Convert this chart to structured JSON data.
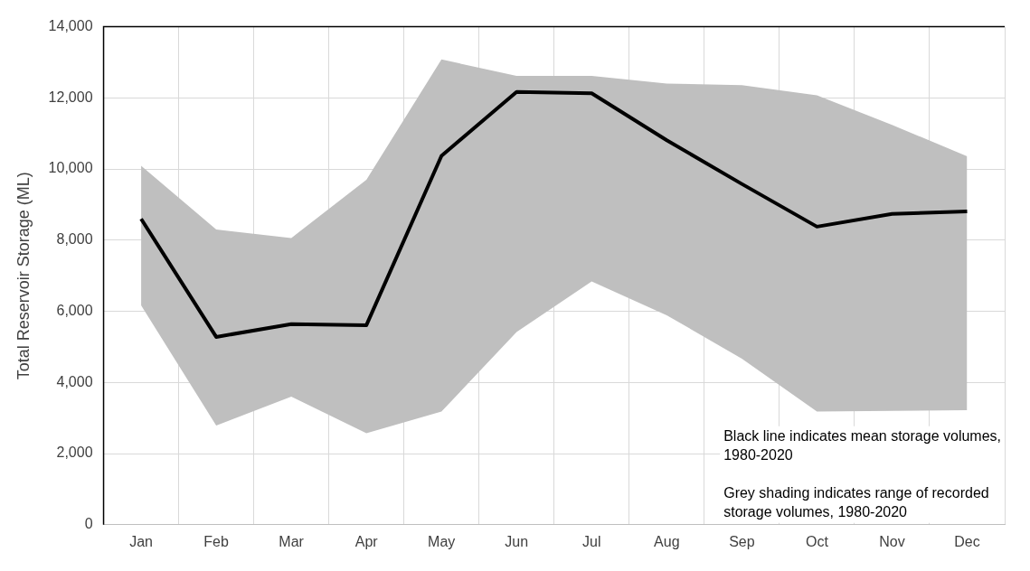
{
  "chart_data": {
    "type": "line",
    "ylabel": "Total Reservoir Storage (ML)",
    "categories": [
      "Jan",
      "Feb",
      "Mar",
      "Apr",
      "May",
      "Jun",
      "Jul",
      "Aug",
      "Sep",
      "Oct",
      "Nov",
      "Dec"
    ],
    "series": [
      {
        "color": "#000000",
        "values": [
          8600,
          5280,
          5640,
          5610,
          10370,
          12170,
          12130,
          10810,
          9580,
          8380,
          8740,
          8810
        ],
        "lower": [
          6170,
          2790,
          3600,
          2570,
          3180,
          5420,
          6840,
          5890,
          4670,
          3180,
          3200,
          3220
        ],
        "upper": [
          10090,
          8300,
          8060,
          9700,
          13080,
          12620,
          12620,
          12400,
          12360,
          12070,
          11240,
          10360
        ]
      }
    ],
    "ylim": [
      0,
      14000
    ],
    "yticks": [
      {
        "value": 0,
        "label": "0"
      },
      {
        "value": 2000,
        "label": "2,000"
      },
      {
        "value": 4000,
        "label": "4,000"
      },
      {
        "value": 6000,
        "label": "6,000"
      },
      {
        "value": 8000,
        "label": "8,000"
      },
      {
        "value": 10000,
        "label": "10,000"
      },
      {
        "value": 12000,
        "label": "12,000"
      },
      {
        "value": 14000,
        "label": "14,000"
      }
    ],
    "grid": true,
    "legend": false,
    "marker": "none",
    "line_style": "solid",
    "annotations": [
      "Black line indicates mean storage volumes, 1980-2020",
      "Grey shading indicates range of recorded storage volumes, 1980-2020"
    ]
  }
}
